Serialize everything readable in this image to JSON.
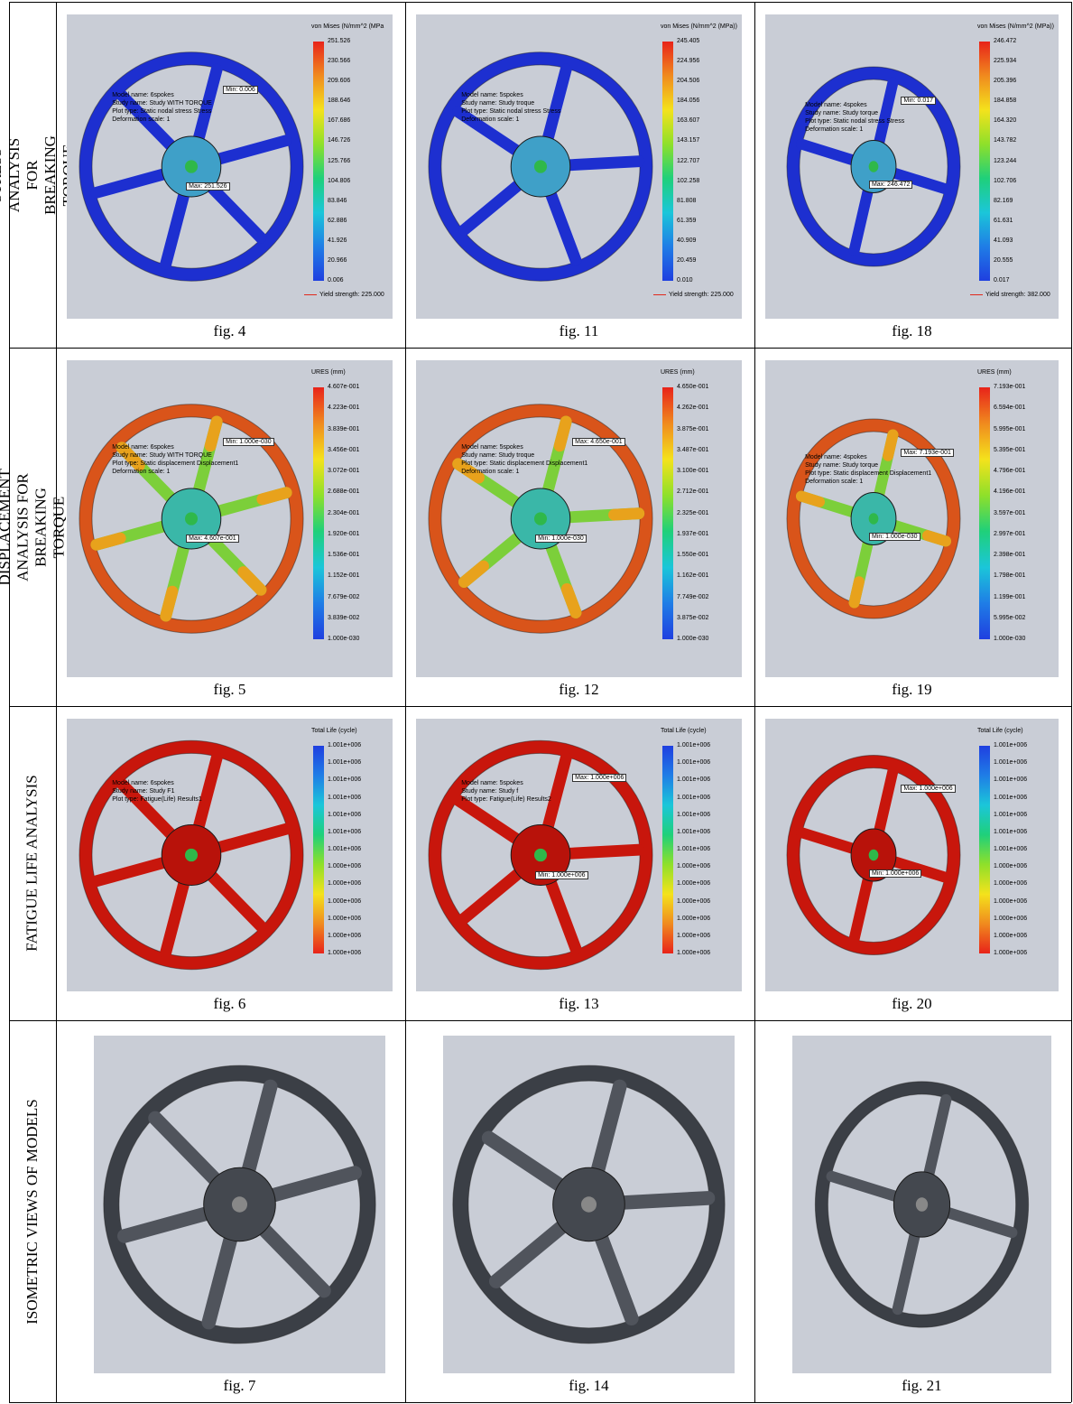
{
  "rows": [
    {
      "label": "STRESS ANALYSIS FOR BREAKING TORQUE"
    },
    {
      "label": "DISPLACEMENT ANALYSIS FOR BREAKING TORQUE"
    },
    {
      "label": "FATIGUE LIFE ANALYSIS"
    },
    {
      "label": "ISOMETRIC VIEWS OF MODELS"
    }
  ],
  "cells": [
    {
      "caption": "fig. 4",
      "wheel": "stress",
      "spokes": 6,
      "legend": {
        "title": "von Mises (N/mm^2 (MPa",
        "values": [
          "251.526",
          "230.566",
          "209.606",
          "188.646",
          "167.686",
          "146.726",
          "125.766",
          "104.806",
          "83.846",
          "62.886",
          "41.926",
          "20.966",
          "0.006"
        ],
        "yield": "Yield strength: 225.000"
      },
      "info": [
        "Model name: 6spokes",
        "Study name: Study WITH TORQUE",
        "Plot type: Static nodal stress Stress",
        "Deformation scale: 1"
      ],
      "tags": [
        "Min: 0.006",
        "Max: 251.526"
      ]
    },
    {
      "caption": "fig. 11",
      "wheel": "stress",
      "spokes": 5,
      "legend": {
        "title": "von Mises (N/mm^2 (MPa))",
        "values": [
          "245.405",
          "224.956",
          "204.506",
          "184.056",
          "163.607",
          "143.157",
          "122.707",
          "102.258",
          "81.808",
          "61.359",
          "40.909",
          "20.459",
          "0.010"
        ],
        "yield": "Yield strength: 225.000"
      },
      "info": [
        "Model name: 5spokes",
        "Study name: Study troque",
        "Plot type: Static nodal stress Stress",
        "Deformation scale: 1"
      ],
      "tags": []
    },
    {
      "caption": "fig. 18",
      "wheel": "stress",
      "spokes": 4,
      "legend": {
        "title": "von Mises (N/mm^2 (MPa))",
        "values": [
          "246.472",
          "225.934",
          "205.396",
          "184.858",
          "164.320",
          "143.782",
          "123.244",
          "102.706",
          "82.169",
          "61.631",
          "41.093",
          "20.555",
          "0.017"
        ],
        "yield": "Yield strength: 382.000"
      },
      "info": [
        "Model name: 4spokes",
        "Study name: Study torque",
        "Plot type: Static nodal stress Stress",
        "Deformation scale: 1"
      ],
      "tags": [
        "Min: 0.017",
        "Max: 246.472"
      ]
    },
    {
      "caption": "fig. 5",
      "wheel": "disp",
      "spokes": 6,
      "legend": {
        "title": "URES (mm)",
        "values": [
          "4.607e-001",
          "4.223e-001",
          "3.839e-001",
          "3.456e-001",
          "3.072e-001",
          "2.688e-001",
          "2.304e-001",
          "1.920e-001",
          "1.536e-001",
          "1.152e-001",
          "7.679e-002",
          "3.839e-002",
          "1.000e-030"
        ],
        "yield": ""
      },
      "info": [
        "Model name: 6spokes",
        "Study name: Study WITH TORQUE",
        "Plot type: Static displacement Displacement1",
        "Deformation scale: 1"
      ],
      "tags": [
        "Min: 1.000e-030",
        "Max: 4.607e-001"
      ]
    },
    {
      "caption": "fig. 12",
      "wheel": "disp",
      "spokes": 5,
      "legend": {
        "title": "URES (mm)",
        "values": [
          "4.650e-001",
          "4.262e-001",
          "3.875e-001",
          "3.487e-001",
          "3.100e-001",
          "2.712e-001",
          "2.325e-001",
          "1.937e-001",
          "1.550e-001",
          "1.162e-001",
          "7.749e-002",
          "3.875e-002",
          "1.000e-030"
        ],
        "yield": ""
      },
      "info": [
        "Model name: 5spokes",
        "Study name: Study troque",
        "Plot type: Static displacement Displacement1",
        "Deformation scale: 1"
      ],
      "tags": [
        "Max: 4.650e-001",
        "Min: 1.000e-030"
      ]
    },
    {
      "caption": "fig. 19",
      "wheel": "disp",
      "spokes": 4,
      "legend": {
        "title": "URES (mm)",
        "values": [
          "7.193e-001",
          "6.594e-001",
          "5.995e-001",
          "5.395e-001",
          "4.796e-001",
          "4.196e-001",
          "3.597e-001",
          "2.997e-001",
          "2.398e-001",
          "1.798e-001",
          "1.199e-001",
          "5.995e-002",
          "1.000e-030"
        ],
        "yield": ""
      },
      "info": [
        "Model name: 4spokes",
        "Study name: Study torque",
        "Plot type: Static displacement Displacement1",
        "Deformation scale: 1"
      ],
      "tags": [
        "Max: 7.193e-001",
        "Min: 1.000e-030"
      ]
    },
    {
      "caption": "fig. 6",
      "wheel": "fatigue",
      "spokes": 6,
      "legend": {
        "title": "Total Life (cycle)",
        "values": [
          "1.001e+006",
          "1.001e+006",
          "1.001e+006",
          "1.001e+006",
          "1.001e+006",
          "1.001e+006",
          "1.001e+006",
          "1.000e+006",
          "1.000e+006",
          "1.000e+006",
          "1.000e+006",
          "1.000e+006",
          "1.000e+006"
        ],
        "yield": ""
      },
      "info": [
        "Model name: 6spokes",
        "Study name: Study F1",
        "Plot type: Fatigue(Life) Results1"
      ],
      "tags": []
    },
    {
      "caption": "fig. 13",
      "wheel": "fatigue",
      "spokes": 5,
      "legend": {
        "title": "Total Life (cycle)",
        "values": [
          "1.001e+006",
          "1.001e+006",
          "1.001e+006",
          "1.001e+006",
          "1.001e+006",
          "1.001e+006",
          "1.001e+006",
          "1.000e+006",
          "1.000e+006",
          "1.000e+006",
          "1.000e+006",
          "1.000e+006",
          "1.000e+006"
        ],
        "yield": ""
      },
      "info": [
        "Model name: 5spokes",
        "Study name: Study f",
        "Plot type: Fatigue(Life) Results2"
      ],
      "tags": [
        "Max: 1.000e+006",
        "Min: 1.000e+006"
      ]
    },
    {
      "caption": "fig. 20",
      "wheel": "fatigue",
      "spokes": 4,
      "legend": {
        "title": "Total Life (cycle)",
        "values": [
          "1.001e+006",
          "1.001e+006",
          "1.001e+006",
          "1.001e+006",
          "1.001e+006",
          "1.001e+006",
          "1.001e+006",
          "1.000e+006",
          "1.000e+006",
          "1.000e+006",
          "1.000e+006",
          "1.000e+006",
          "1.000e+006"
        ],
        "yield": ""
      },
      "info": [],
      "tags": [
        "Max: 1.000e+006",
        "Min: 1.000e+006"
      ]
    },
    {
      "caption": "fig. 7",
      "wheel": "iso",
      "spokes": 6,
      "legend": null,
      "info": [],
      "tags": []
    },
    {
      "caption": "fig. 14",
      "wheel": "iso",
      "spokes": 5,
      "legend": null,
      "info": [],
      "tags": []
    },
    {
      "caption": "fig. 21",
      "wheel": "iso",
      "spokes": 4,
      "legend": null,
      "info": [],
      "tags": []
    }
  ],
  "colors": {
    "stress": "#1d2fd0",
    "disp_rim": "#d9541a",
    "fatigue": "#c8160c",
    "iso": "#3b3f46",
    "panel_bg": "#c9cdd6",
    "hub_disp": "#3ab7a8",
    "spoke_disp": "#7ccf3a"
  }
}
